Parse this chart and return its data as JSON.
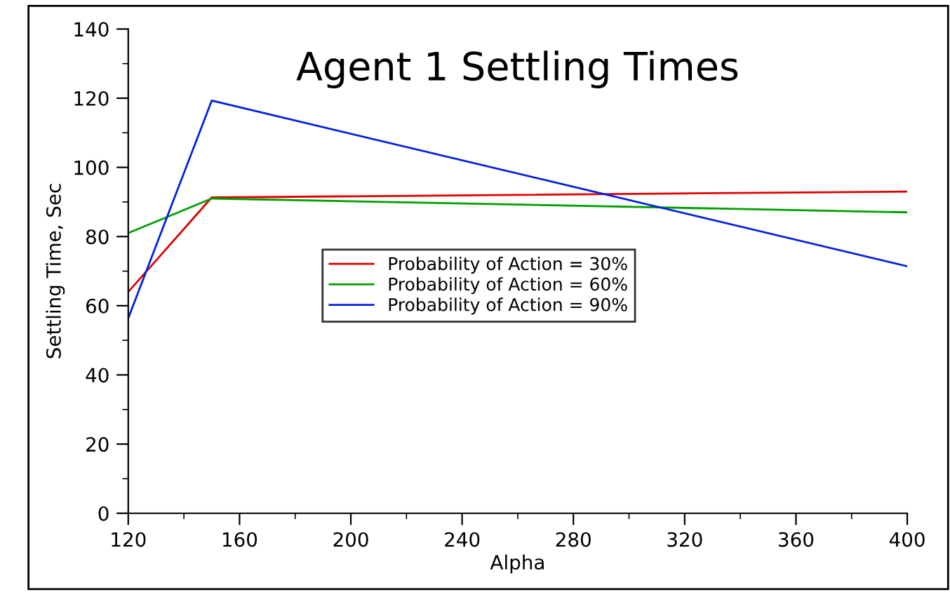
{
  "chart_data": {
    "type": "line",
    "title": "Agent 1 Settling Times",
    "xlabel": "Alpha",
    "ylabel": "Settling Time, Sec",
    "x": [
      120,
      150,
      400
    ],
    "series": [
      {
        "name": "Probability of Action = 30%",
        "color": "#e00000",
        "values": [
          64,
          91.3,
          93
        ]
      },
      {
        "name": "Probability of Action = 60%",
        "color": "#00a000",
        "values": [
          81,
          91,
          87
        ]
      },
      {
        "name": "Probability of Action = 90%",
        "color": "#0020e0",
        "values": [
          56.4,
          119.3,
          71.4
        ]
      }
    ],
    "xlim": [
      120,
      400
    ],
    "xticks": [
      120,
      160,
      200,
      240,
      280,
      320,
      360,
      400
    ],
    "ylim": [
      0,
      140
    ],
    "yticks": [
      0,
      20,
      40,
      60,
      80,
      100,
      120,
      140
    ],
    "grid": false,
    "legend": "center",
    "marker": "none",
    "line_style": "solid"
  }
}
